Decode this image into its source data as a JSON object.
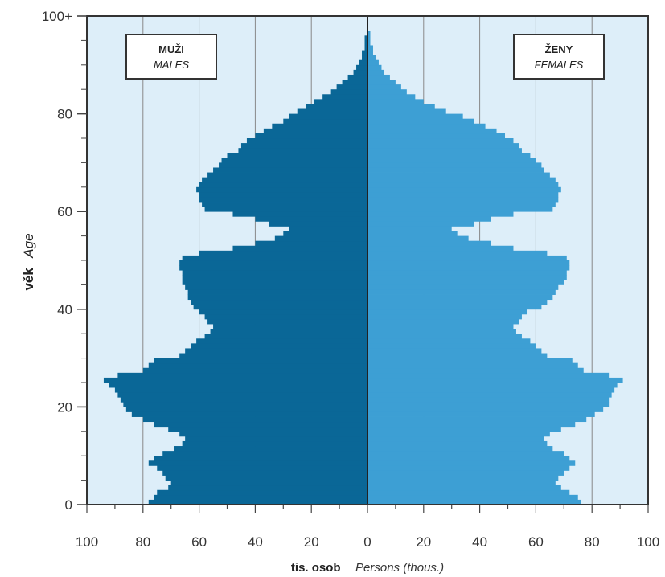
{
  "colors": {
    "background": "#ddeef9",
    "males": "#0a6797",
    "females": "#3d9fd4",
    "frame": "#333333",
    "grid": "#888888"
  },
  "chart_data": {
    "type": "bar",
    "orientation": "horizontal",
    "subtype": "population-pyramid",
    "ages": [
      0,
      1,
      2,
      3,
      4,
      5,
      6,
      7,
      8,
      9,
      10,
      11,
      12,
      13,
      14,
      15,
      16,
      17,
      18,
      19,
      20,
      21,
      22,
      23,
      24,
      25,
      26,
      27,
      28,
      29,
      30,
      31,
      32,
      33,
      34,
      35,
      36,
      37,
      38,
      39,
      40,
      41,
      42,
      43,
      44,
      45,
      46,
      47,
      48,
      49,
      50,
      51,
      52,
      53,
      54,
      55,
      56,
      57,
      58,
      59,
      60,
      61,
      62,
      63,
      64,
      65,
      66,
      67,
      68,
      69,
      70,
      71,
      72,
      73,
      74,
      75,
      76,
      77,
      78,
      79,
      80,
      81,
      82,
      83,
      84,
      85,
      86,
      87,
      88,
      89,
      90,
      91,
      92,
      93,
      94,
      95,
      96,
      97,
      98,
      99,
      100
    ],
    "series": [
      {
        "name": "MUŽI",
        "values": [
          78,
          76,
          75,
          71,
          70,
          72,
          73,
          75,
          78,
          76,
          73,
          69,
          66,
          65,
          67,
          71,
          76,
          80,
          84,
          86,
          87,
          88,
          89,
          90,
          92,
          94,
          89,
          80,
          78,
          76,
          67,
          65,
          63,
          61,
          58,
          56,
          55,
          57,
          58,
          60,
          62,
          63,
          64,
          64,
          65,
          66,
          66,
          66,
          67,
          67,
          66,
          60,
          48,
          40,
          33,
          30,
          28,
          35,
          40,
          48,
          58,
          59,
          60,
          60,
          61,
          60,
          59,
          57,
          55,
          53,
          52,
          50,
          46,
          45,
          43,
          40,
          37,
          34,
          30,
          28,
          25,
          22,
          19,
          16,
          13,
          11,
          9,
          7,
          5,
          4,
          3,
          2,
          2,
          1,
          1,
          1,
          0,
          0,
          0,
          0,
          0
        ]
      },
      {
        "name": "ŽENY",
        "values": [
          76,
          75,
          72,
          69,
          67,
          68,
          70,
          72,
          74,
          72,
          70,
          66,
          64,
          63,
          65,
          69,
          74,
          78,
          81,
          84,
          86,
          86,
          87,
          88,
          89,
          91,
          86,
          77,
          75,
          73,
          64,
          62,
          60,
          58,
          55,
          53,
          52,
          54,
          55,
          57,
          62,
          64,
          66,
          67,
          68,
          70,
          71,
          71,
          72,
          72,
          71,
          64,
          52,
          44,
          36,
          32,
          30,
          38,
          44,
          52,
          66,
          67,
          68,
          68,
          69,
          68,
          67,
          65,
          63,
          62,
          60,
          58,
          55,
          54,
          52,
          49,
          46,
          42,
          38,
          34,
          28,
          24,
          20,
          17,
          14,
          12,
          10,
          8,
          6,
          5,
          4,
          3,
          2,
          2,
          1,
          1,
          1,
          0,
          0,
          0,
          0
        ]
      }
    ],
    "xlim": [
      -100,
      100
    ],
    "ylim": [
      0,
      100
    ],
    "x_ticks": [
      -100,
      -80,
      -60,
      -40,
      -20,
      0,
      20,
      40,
      60,
      80,
      100
    ],
    "x_tick_labels": [
      "100",
      "80",
      "60",
      "40",
      "20",
      "0",
      "20",
      "40",
      "60",
      "80",
      "100"
    ],
    "y_ticks": [
      0,
      20,
      40,
      60,
      80,
      100
    ],
    "y_tick_labels": [
      "0",
      "20",
      "40",
      "60",
      "80",
      "100+"
    ],
    "ylabel_primary": "věk",
    "ylabel_secondary": "Age",
    "xlabel_primary": "tis. osob",
    "xlabel_secondary": "Persons (thous.)",
    "legend_males_primary": "MUŽI",
    "legend_males_secondary": "MALES",
    "legend_females_primary": "ŽENY",
    "legend_females_secondary": "FEMALES",
    "grid": "vertical"
  }
}
